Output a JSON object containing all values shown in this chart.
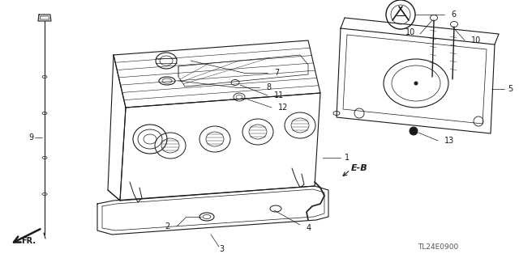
{
  "bg_color": "#ffffff",
  "line_color": "#1a1a1a",
  "diagram_code": "TL24E0900",
  "figsize": [
    6.4,
    3.19
  ],
  "dpi": 100
}
